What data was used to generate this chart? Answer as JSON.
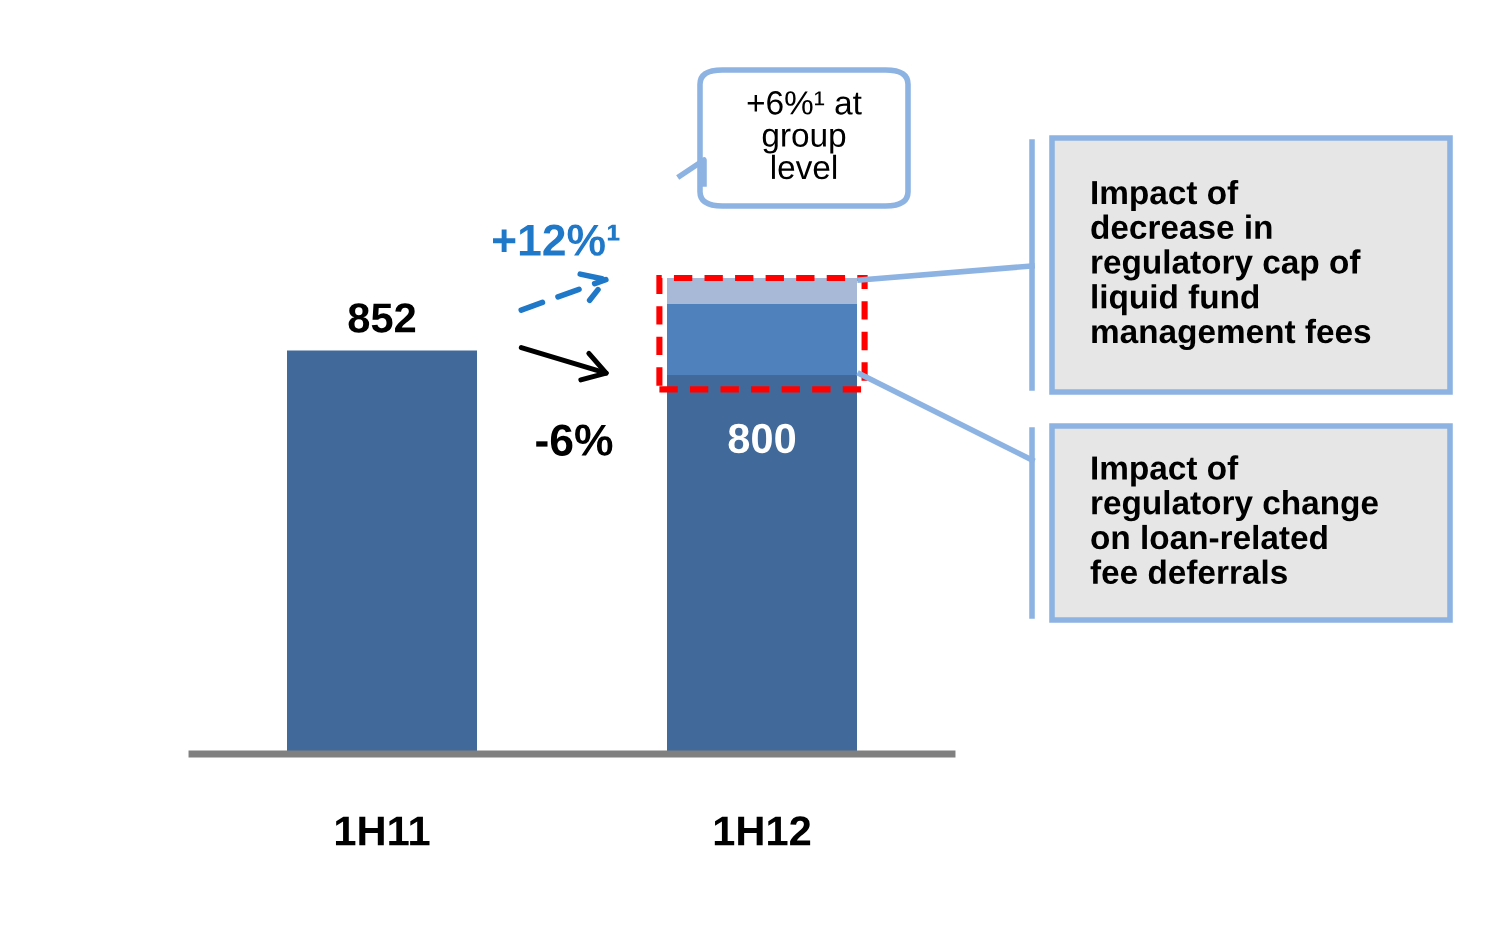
{
  "chart_data": {
    "type": "bar",
    "stacked": true,
    "ylim": [
      0,
      1005
    ],
    "tick_labels": "x",
    "categories": [
      "1H11",
      "1H12"
    ],
    "series": [
      {
        "color": "#416a9a",
        "values": [
          852,
          800
        ],
        "value_labels": [
          "852",
          "800"
        ]
      },
      {
        "color": "#4f81bd",
        "values": [
          null,
          150
        ]
      },
      {
        "color": "#a7b9d7",
        "values": [
          null,
          55
        ]
      }
    ],
    "annotations": [
      "+12%¹",
      "-6%",
      "+6%¹ at\ngroup\nlevel",
      "Impact of\ndecrease in\nregulatory cap of\nliquid fund\nmanagement fees",
      "Impact of\nregulatory change\non loan-related\nfee deferrals"
    ],
    "grid": false,
    "legend": false
  }
}
